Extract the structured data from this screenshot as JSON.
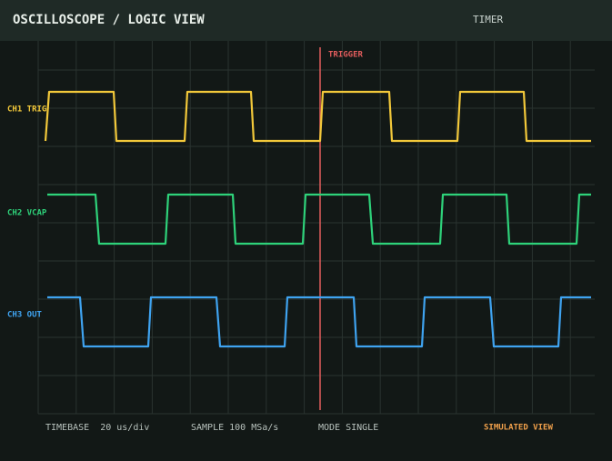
{
  "header": {
    "title": "OSCILLOSCOPE / LOGIC VIEW",
    "mode": "TIMER"
  },
  "trigger": {
    "label": "TRIGGER"
  },
  "channels": [
    {
      "label": "CH1 TRIG"
    },
    {
      "label": "CH2 VCAP"
    },
    {
      "label": "CH3 OUT"
    }
  ],
  "footer": {
    "timebase": "TIMEBASE  20 us/div",
    "sample": "SAMPLE 100 MSa/s",
    "mode": "MODE SINGLE",
    "status": "SIMULATED VIEW"
  }
}
